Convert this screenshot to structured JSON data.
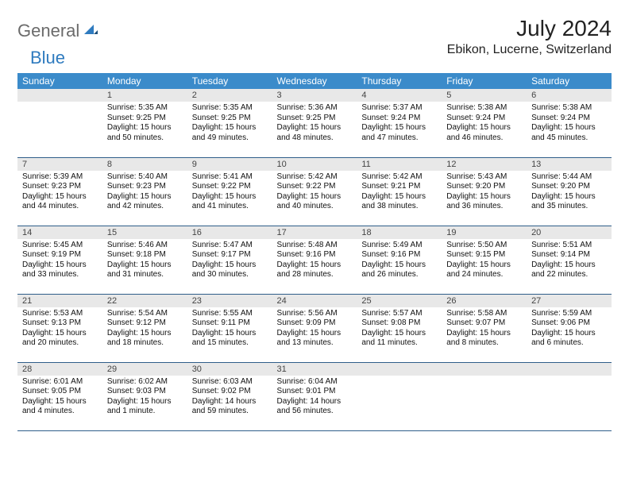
{
  "brand": {
    "name_gray": "General",
    "name_blue": "Blue"
  },
  "title": "July 2024",
  "location": "Ebikon, Lucerne, Switzerland",
  "colors": {
    "header_bg": "#3b8bca",
    "header_text": "#ffffff",
    "daynum_bg": "#e8e8e8",
    "row_border": "#2f5e8a",
    "logo_gray": "#6b6b6b",
    "logo_blue": "#2f7bbf"
  },
  "weekdays": [
    "Sunday",
    "Monday",
    "Tuesday",
    "Wednesday",
    "Thursday",
    "Friday",
    "Saturday"
  ],
  "weeks": [
    [
      null,
      {
        "n": "1",
        "sr": "Sunrise: 5:35 AM",
        "ss": "Sunset: 9:25 PM",
        "d1": "Daylight: 15 hours",
        "d2": "and 50 minutes."
      },
      {
        "n": "2",
        "sr": "Sunrise: 5:35 AM",
        "ss": "Sunset: 9:25 PM",
        "d1": "Daylight: 15 hours",
        "d2": "and 49 minutes."
      },
      {
        "n": "3",
        "sr": "Sunrise: 5:36 AM",
        "ss": "Sunset: 9:25 PM",
        "d1": "Daylight: 15 hours",
        "d2": "and 48 minutes."
      },
      {
        "n": "4",
        "sr": "Sunrise: 5:37 AM",
        "ss": "Sunset: 9:24 PM",
        "d1": "Daylight: 15 hours",
        "d2": "and 47 minutes."
      },
      {
        "n": "5",
        "sr": "Sunrise: 5:38 AM",
        "ss": "Sunset: 9:24 PM",
        "d1": "Daylight: 15 hours",
        "d2": "and 46 minutes."
      },
      {
        "n": "6",
        "sr": "Sunrise: 5:38 AM",
        "ss": "Sunset: 9:24 PM",
        "d1": "Daylight: 15 hours",
        "d2": "and 45 minutes."
      }
    ],
    [
      {
        "n": "7",
        "sr": "Sunrise: 5:39 AM",
        "ss": "Sunset: 9:23 PM",
        "d1": "Daylight: 15 hours",
        "d2": "and 44 minutes."
      },
      {
        "n": "8",
        "sr": "Sunrise: 5:40 AM",
        "ss": "Sunset: 9:23 PM",
        "d1": "Daylight: 15 hours",
        "d2": "and 42 minutes."
      },
      {
        "n": "9",
        "sr": "Sunrise: 5:41 AM",
        "ss": "Sunset: 9:22 PM",
        "d1": "Daylight: 15 hours",
        "d2": "and 41 minutes."
      },
      {
        "n": "10",
        "sr": "Sunrise: 5:42 AM",
        "ss": "Sunset: 9:22 PM",
        "d1": "Daylight: 15 hours",
        "d2": "and 40 minutes."
      },
      {
        "n": "11",
        "sr": "Sunrise: 5:42 AM",
        "ss": "Sunset: 9:21 PM",
        "d1": "Daylight: 15 hours",
        "d2": "and 38 minutes."
      },
      {
        "n": "12",
        "sr": "Sunrise: 5:43 AM",
        "ss": "Sunset: 9:20 PM",
        "d1": "Daylight: 15 hours",
        "d2": "and 36 minutes."
      },
      {
        "n": "13",
        "sr": "Sunrise: 5:44 AM",
        "ss": "Sunset: 9:20 PM",
        "d1": "Daylight: 15 hours",
        "d2": "and 35 minutes."
      }
    ],
    [
      {
        "n": "14",
        "sr": "Sunrise: 5:45 AM",
        "ss": "Sunset: 9:19 PM",
        "d1": "Daylight: 15 hours",
        "d2": "and 33 minutes."
      },
      {
        "n": "15",
        "sr": "Sunrise: 5:46 AM",
        "ss": "Sunset: 9:18 PM",
        "d1": "Daylight: 15 hours",
        "d2": "and 31 minutes."
      },
      {
        "n": "16",
        "sr": "Sunrise: 5:47 AM",
        "ss": "Sunset: 9:17 PM",
        "d1": "Daylight: 15 hours",
        "d2": "and 30 minutes."
      },
      {
        "n": "17",
        "sr": "Sunrise: 5:48 AM",
        "ss": "Sunset: 9:16 PM",
        "d1": "Daylight: 15 hours",
        "d2": "and 28 minutes."
      },
      {
        "n": "18",
        "sr": "Sunrise: 5:49 AM",
        "ss": "Sunset: 9:16 PM",
        "d1": "Daylight: 15 hours",
        "d2": "and 26 minutes."
      },
      {
        "n": "19",
        "sr": "Sunrise: 5:50 AM",
        "ss": "Sunset: 9:15 PM",
        "d1": "Daylight: 15 hours",
        "d2": "and 24 minutes."
      },
      {
        "n": "20",
        "sr": "Sunrise: 5:51 AM",
        "ss": "Sunset: 9:14 PM",
        "d1": "Daylight: 15 hours",
        "d2": "and 22 minutes."
      }
    ],
    [
      {
        "n": "21",
        "sr": "Sunrise: 5:53 AM",
        "ss": "Sunset: 9:13 PM",
        "d1": "Daylight: 15 hours",
        "d2": "and 20 minutes."
      },
      {
        "n": "22",
        "sr": "Sunrise: 5:54 AM",
        "ss": "Sunset: 9:12 PM",
        "d1": "Daylight: 15 hours",
        "d2": "and 18 minutes."
      },
      {
        "n": "23",
        "sr": "Sunrise: 5:55 AM",
        "ss": "Sunset: 9:11 PM",
        "d1": "Daylight: 15 hours",
        "d2": "and 15 minutes."
      },
      {
        "n": "24",
        "sr": "Sunrise: 5:56 AM",
        "ss": "Sunset: 9:09 PM",
        "d1": "Daylight: 15 hours",
        "d2": "and 13 minutes."
      },
      {
        "n": "25",
        "sr": "Sunrise: 5:57 AM",
        "ss": "Sunset: 9:08 PM",
        "d1": "Daylight: 15 hours",
        "d2": "and 11 minutes."
      },
      {
        "n": "26",
        "sr": "Sunrise: 5:58 AM",
        "ss": "Sunset: 9:07 PM",
        "d1": "Daylight: 15 hours",
        "d2": "and 8 minutes."
      },
      {
        "n": "27",
        "sr": "Sunrise: 5:59 AM",
        "ss": "Sunset: 9:06 PM",
        "d1": "Daylight: 15 hours",
        "d2": "and 6 minutes."
      }
    ],
    [
      {
        "n": "28",
        "sr": "Sunrise: 6:01 AM",
        "ss": "Sunset: 9:05 PM",
        "d1": "Daylight: 15 hours",
        "d2": "and 4 minutes."
      },
      {
        "n": "29",
        "sr": "Sunrise: 6:02 AM",
        "ss": "Sunset: 9:03 PM",
        "d1": "Daylight: 15 hours",
        "d2": "and 1 minute."
      },
      {
        "n": "30",
        "sr": "Sunrise: 6:03 AM",
        "ss": "Sunset: 9:02 PM",
        "d1": "Daylight: 14 hours",
        "d2": "and 59 minutes."
      },
      {
        "n": "31",
        "sr": "Sunrise: 6:04 AM",
        "ss": "Sunset: 9:01 PM",
        "d1": "Daylight: 14 hours",
        "d2": "and 56 minutes."
      },
      null,
      null,
      null
    ]
  ]
}
